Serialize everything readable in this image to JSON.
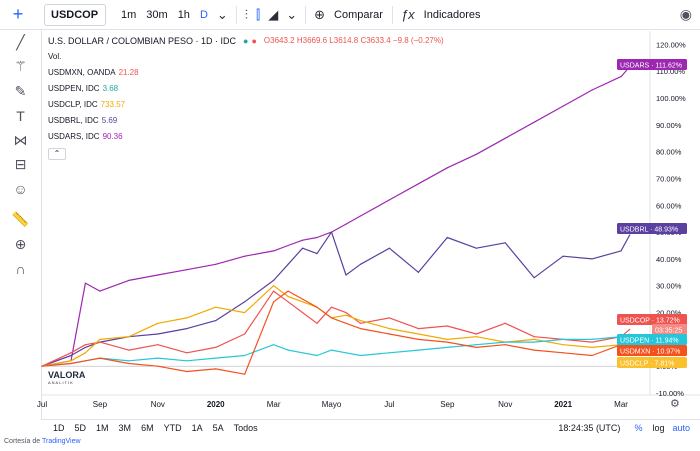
{
  "toolbar": {
    "symbol": "USDCOP",
    "intervals": [
      "1m",
      "30m",
      "1h",
      "D"
    ],
    "active_interval": "D",
    "compare_label": "Comparar",
    "indicators_label": "Indicadores"
  },
  "legend": {
    "title": "U.S. DOLLAR / COLOMBIAN PESO · 1D · IDC",
    "ohlc": "O3643.2 H3669.6 L3614.8 C3633.4 −9.8 (−0.27%)",
    "vol_label": "Vol.",
    "rows": [
      {
        "label": "USDMXN, OANDA",
        "value": "21.28",
        "color": "#ef5350"
      },
      {
        "label": "USDPEN, IDC",
        "value": "3.68",
        "color": "#26a69a"
      },
      {
        "label": "USDCLP, IDC",
        "value": "733.57",
        "color": "#f2a900"
      },
      {
        "label": "USDBRL, IDC",
        "value": "5.69",
        "color": "#5b3fa1"
      },
      {
        "label": "USDARS, IDC",
        "value": "90.36",
        "color": "#9c27b0"
      }
    ],
    "collapse_icon": "chevron-up-icon"
  },
  "price_badges": [
    {
      "text": "USDARS · 111.62%",
      "color": "#9c27b0"
    },
    {
      "text": "USDBRL · 48.93%",
      "color": "#5b3fa1"
    },
    {
      "text": "USDCOP · 13.72%",
      "color": "#ef5350"
    },
    {
      "text": "03:35:25",
      "color": "#f58a85"
    },
    {
      "text": "USDPEN · 11.94%",
      "color": "#26c6da"
    },
    {
      "text": "USDMXN · 10.97%",
      "color": "#f4511e"
    },
    {
      "text": "USDCLP · 7.81%",
      "color": "#fbc02d"
    }
  ],
  "bottom": {
    "ranges": [
      "1D",
      "5D",
      "1M",
      "3M",
      "6M",
      "YTD",
      "1A",
      "5A",
      "Todos"
    ],
    "clock": "18:24:35 (UTC)",
    "pct": "%",
    "log": "log",
    "auto": "auto"
  },
  "credits": {
    "prefix": "Cortesía de",
    "link": "TradingView"
  },
  "logo": {
    "name": "VALORA",
    "tagline": "ANALITIK"
  },
  "chart_data": {
    "type": "line",
    "yaxis_format": "percent",
    "ylim": [
      -10,
      125
    ],
    "y_ticks": [
      -10,
      0,
      10,
      20,
      30,
      40,
      50,
      60,
      70,
      80,
      90,
      100,
      110,
      120
    ],
    "x_ticks": [
      "Jul",
      "Sep",
      "Nov",
      "2020",
      "Mar",
      "Mayo",
      "Jul",
      "Sep",
      "Nov",
      "2021",
      "Mar"
    ],
    "x_tick_positions": [
      0,
      2,
      4,
      6,
      8,
      10,
      12,
      14,
      16,
      18,
      20
    ],
    "x": [
      0,
      1,
      1.5,
      2,
      3,
      4,
      5,
      6,
      7,
      8,
      8.5,
      9,
      9.5,
      10,
      10.5,
      11,
      12,
      13,
      14,
      15,
      16,
      17,
      18,
      19,
      20,
      20.3
    ],
    "series": [
      {
        "name": "USDARS",
        "color": "#9c27b0",
        "values": [
          0,
          2,
          31,
          28,
          32,
          34,
          36,
          38,
          41,
          43,
          45,
          47,
          48,
          50,
          53,
          56,
          62,
          68,
          74,
          79,
          85,
          91,
          97,
          103,
          108,
          111.62
        ]
      },
      {
        "name": "USDBRL",
        "color": "#5b3fa1",
        "values": [
          0,
          4,
          7,
          9,
          11,
          12,
          14,
          17,
          24,
          32,
          38,
          44,
          42,
          50,
          34,
          38,
          44,
          35,
          48,
          44,
          46,
          33,
          41,
          40,
          43,
          48.93
        ]
      },
      {
        "name": "USDCOP",
        "color": "#ef5350",
        "values": [
          0,
          5,
          8,
          9,
          6,
          8,
          5,
          7,
          12,
          28,
          24,
          20,
          16,
          22,
          20,
          16,
          18,
          14,
          15,
          12,
          16,
          11,
          10,
          9,
          11,
          13.72
        ]
      },
      {
        "name": "USDCLP",
        "color": "#f2a900",
        "values": [
          0,
          2,
          5,
          10,
          11,
          16,
          18,
          22,
          20,
          30,
          26,
          24,
          22,
          18,
          19,
          17,
          14,
          12,
          10,
          11,
          9,
          10,
          8,
          7,
          8,
          7.81
        ]
      },
      {
        "name": "USDPEN",
        "color": "#26c6da",
        "values": [
          0,
          1,
          2,
          3,
          2,
          3,
          2,
          3,
          4,
          8,
          6,
          5,
          4,
          6,
          5,
          4,
          5,
          6,
          7,
          8,
          9,
          9,
          10,
          10,
          11,
          11.94
        ]
      },
      {
        "name": "USDMXN",
        "color": "#f4511e",
        "values": [
          0,
          1,
          2,
          3,
          1,
          0,
          -2,
          -1,
          -3,
          24,
          28,
          25,
          22,
          18,
          16,
          14,
          12,
          10,
          9,
          7,
          8,
          6,
          5,
          4,
          8,
          10.97
        ]
      }
    ]
  }
}
